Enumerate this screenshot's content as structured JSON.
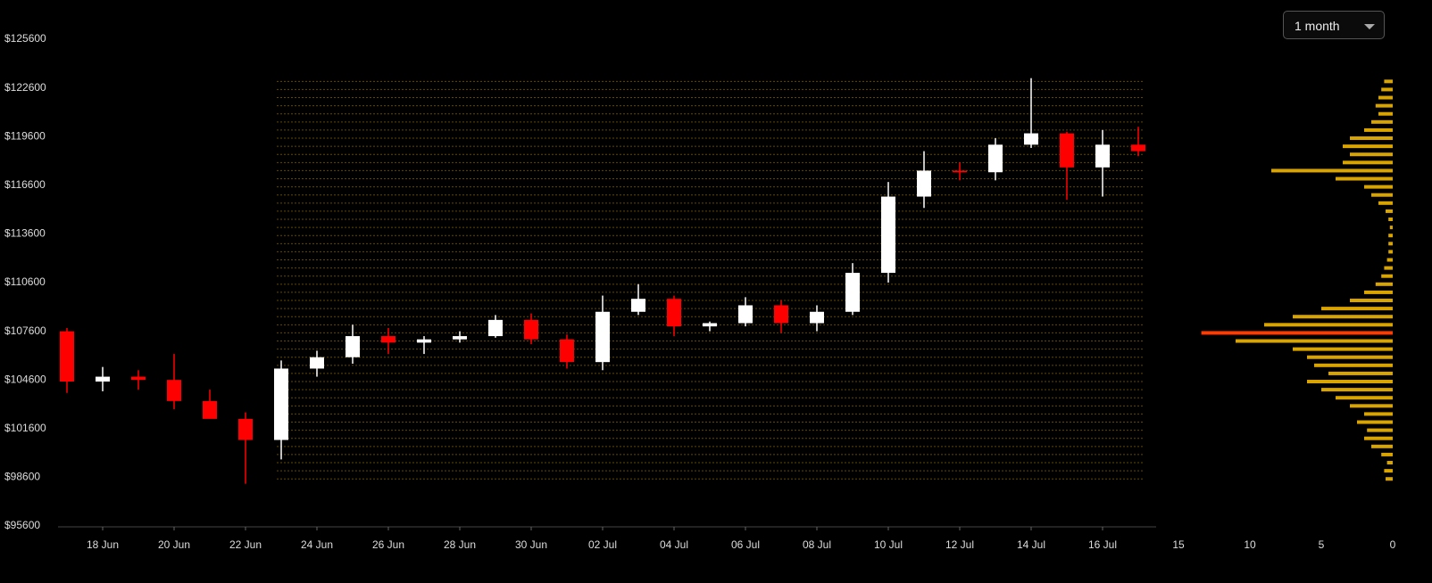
{
  "controls": {
    "range": "1 month"
  },
  "chart_data": [
    {
      "type": "candlestick",
      "categories": [
        null,
        "18 Jun",
        null,
        "20 Jun",
        null,
        "22 Jun",
        null,
        "24 Jun",
        null,
        "26 Jun",
        null,
        "28 Jun",
        null,
        "30 Jun",
        null,
        "02 Jul",
        null,
        "04 Jul",
        null,
        "06 Jul",
        null,
        "08 Jul",
        null,
        "10 Jul",
        null,
        "12 Jul",
        null,
        "14 Jul",
        null,
        "16 Jul",
        null
      ],
      "open": [
        107600,
        104500,
        104800,
        104600,
        103300,
        102200,
        100900,
        105300,
        106000,
        107300,
        106900,
        107100,
        107300,
        108300,
        107100,
        105700,
        108800,
        109600,
        107900,
        108100,
        109200,
        108100,
        108800,
        111200,
        115900,
        117500,
        117400,
        119100,
        119800,
        117700,
        119100
      ],
      "high": [
        107800,
        105400,
        105200,
        106200,
        104000,
        102600,
        105800,
        106400,
        108000,
        107800,
        107300,
        107600,
        108600,
        108700,
        107400,
        109800,
        110500,
        109800,
        108200,
        109700,
        109500,
        109200,
        111800,
        116800,
        118700,
        118000,
        119500,
        123200,
        119900,
        120000,
        120200
      ],
      "low": [
        103800,
        103900,
        104000,
        102800,
        102300,
        98200,
        99700,
        104800,
        105600,
        106200,
        106200,
        106900,
        107200,
        106800,
        105300,
        105200,
        108600,
        107300,
        107600,
        107900,
        107500,
        107600,
        108600,
        110600,
        115200,
        116900,
        116900,
        118900,
        115700,
        115900,
        118400
      ],
      "close": [
        104500,
        104800,
        104600,
        103300,
        102200,
        100900,
        105300,
        106000,
        107300,
        106900,
        107100,
        107300,
        108300,
        107100,
        105700,
        108800,
        109600,
        107900,
        108100,
        109200,
        108100,
        108800,
        111200,
        115900,
        117500,
        117400,
        119100,
        119800,
        117700,
        119100,
        118700
      ],
      "up_color": "#ffffff",
      "down_color": "#ff0000",
      "ylim": [
        95600,
        125600
      ],
      "yticks": [
        {
          "value": 95600,
          "label": "$95600"
        },
        {
          "value": 98600,
          "label": "$98600"
        },
        {
          "value": 101600,
          "label": "$101600"
        },
        {
          "value": 104600,
          "label": "$104600"
        },
        {
          "value": 107600,
          "label": "$107600"
        },
        {
          "value": 110600,
          "label": "$110600"
        },
        {
          "value": 113600,
          "label": "$113600"
        },
        {
          "value": 116600,
          "label": "$116600"
        },
        {
          "value": 119600,
          "label": "$119600"
        },
        {
          "value": 122600,
          "label": "$122600"
        },
        {
          "value": 125600,
          "label": "$125600"
        }
      ]
    },
    {
      "type": "bar",
      "orientation": "horizontal",
      "levels": [
        98500,
        99000,
        99500,
        100000,
        100500,
        101000,
        101500,
        102000,
        102500,
        103000,
        103500,
        104000,
        104500,
        105000,
        105500,
        106000,
        106500,
        107000,
        107500,
        108000,
        108500,
        109000,
        109500,
        110000,
        110500,
        111000,
        111500,
        112000,
        112500,
        113000,
        113500,
        114000,
        114500,
        115000,
        115500,
        116000,
        116500,
        117000,
        117500,
        118000,
        118500,
        119000,
        119500,
        120000,
        120500,
        121000,
        121500,
        122000,
        122500,
        123000
      ],
      "values": [
        0.5,
        0.6,
        0.4,
        0.8,
        1.5,
        2,
        1.8,
        2.5,
        2,
        3,
        4,
        5,
        6,
        4.5,
        5.5,
        6,
        7,
        11,
        13.4,
        9,
        7,
        5,
        3,
        2,
        1.2,
        0.8,
        0.6,
        0.4,
        0.3,
        0.3,
        0.3,
        0.2,
        0.3,
        0.5,
        1,
        1.5,
        2,
        4,
        8.5,
        3.5,
        3,
        3.5,
        3,
        2,
        1.5,
        1,
        1.2,
        1,
        0.8,
        0.6
      ],
      "color": "#d9a400",
      "peak_color": "#ff3b00",
      "xlim": [
        15,
        0
      ],
      "xticks": [
        15,
        10,
        5,
        0
      ]
    }
  ]
}
